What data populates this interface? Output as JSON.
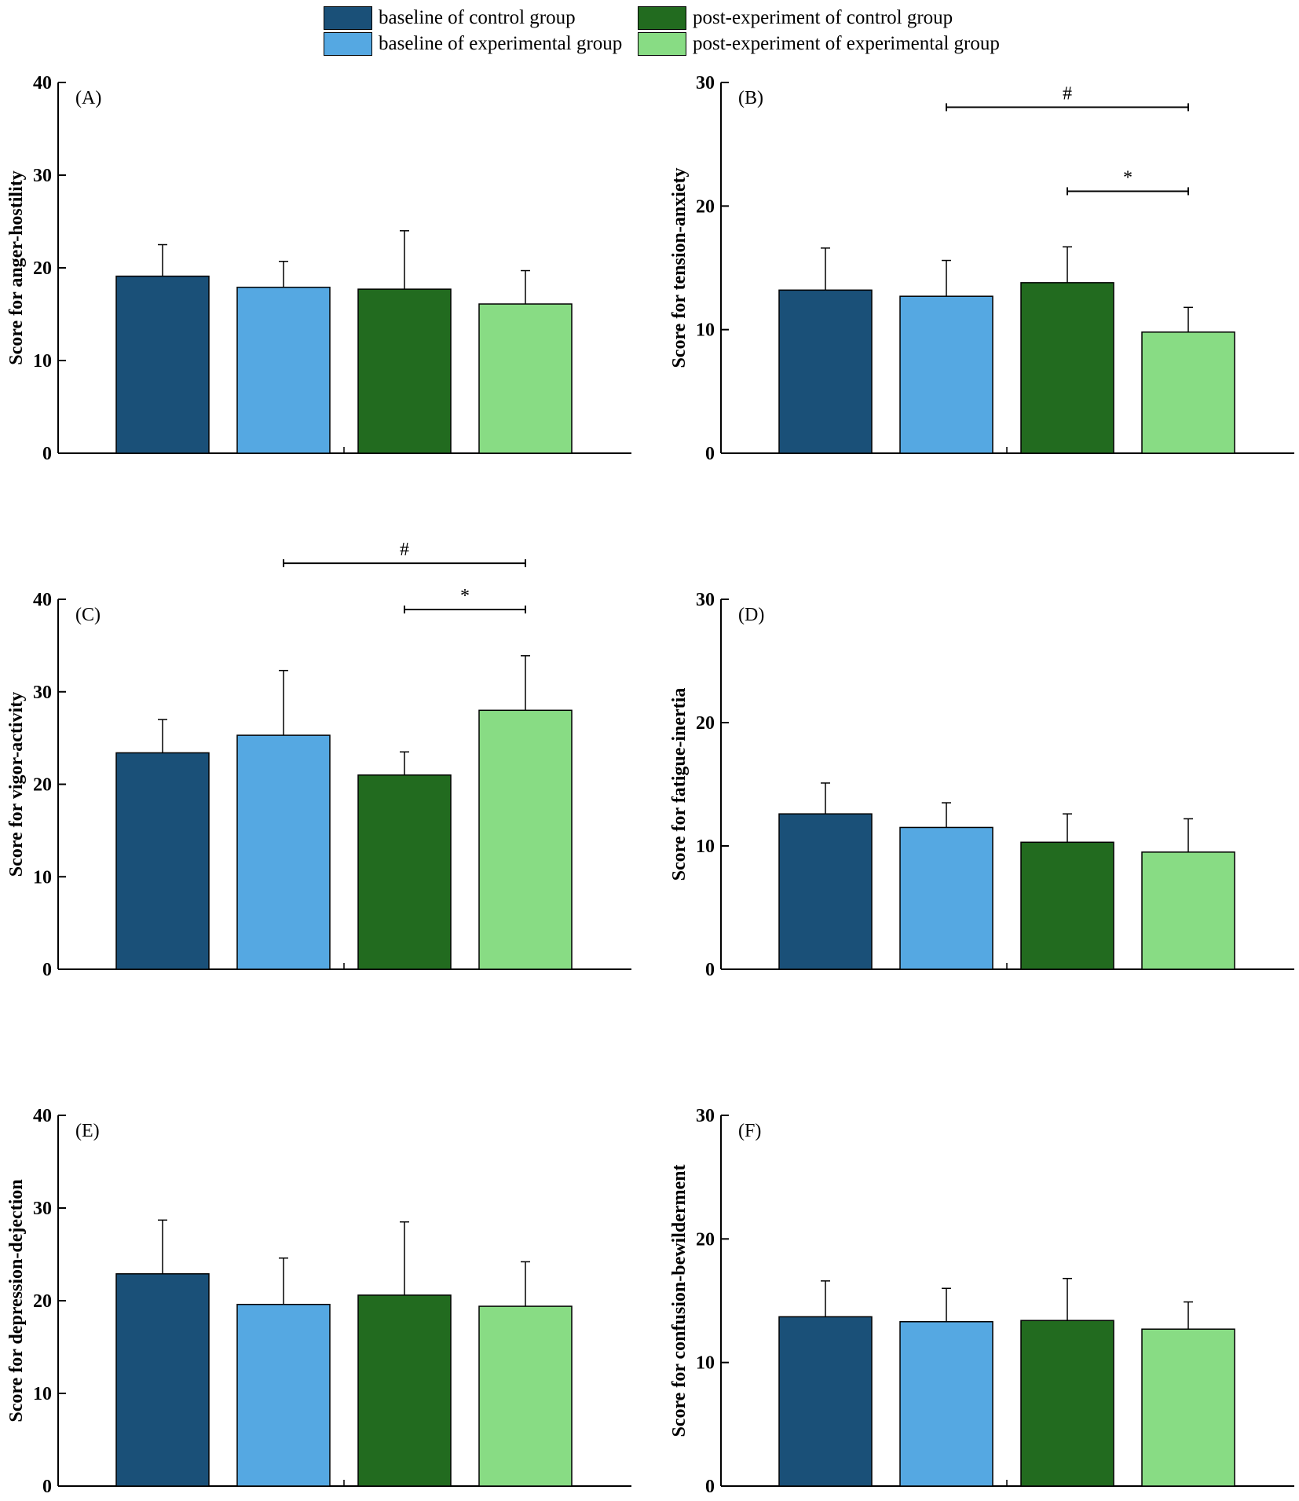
{
  "legend": {
    "items": [
      {
        "label": "baseline of control group",
        "color": "#1a5078"
      },
      {
        "label": "baseline of experimental group",
        "color": "#55a8e2"
      },
      {
        "label": "post-experiment of control group",
        "color": "#226b1f"
      },
      {
        "label": "post-experiment of experimental group",
        "color": "#88dc84"
      }
    ]
  },
  "chart_data": [
    {
      "type": "bar",
      "panel": "(A)",
      "ylabel": "Score for anger-hostility",
      "ylim": [
        0,
        40
      ],
      "yticks": [
        0,
        10,
        20,
        30,
        40
      ],
      "categories": [
        "baseline of control group",
        "baseline of experimental group",
        "post-experiment of control group",
        "post-experiment of experimental group"
      ],
      "values": [
        19.1,
        17.9,
        17.7,
        16.1
      ],
      "errors": [
        3.4,
        2.8,
        6.3,
        3.6
      ],
      "annotations": []
    },
    {
      "type": "bar",
      "panel": "(B)",
      "ylabel": "Score for tension-anxiety",
      "ylim": [
        0,
        30
      ],
      "yticks": [
        0,
        10,
        20,
        30
      ],
      "categories": [
        "baseline of control group",
        "baseline of experimental group",
        "post-experiment of control group",
        "post-experiment of experimental group"
      ],
      "values": [
        13.2,
        12.7,
        13.8,
        9.8
      ],
      "errors": [
        3.4,
        2.9,
        2.9,
        2.0
      ],
      "annotations": [
        {
          "label": "#",
          "from": 1,
          "to": 3,
          "y": 28.0
        },
        {
          "label": "*",
          "from": 2,
          "to": 3,
          "y": 21.2
        }
      ]
    },
    {
      "type": "bar",
      "panel": "(C)",
      "ylabel": "Score for vigor-activity",
      "ylim": [
        0,
        40
      ],
      "yticks": [
        0,
        10,
        20,
        30,
        40
      ],
      "categories": [
        "baseline of control group",
        "baseline of experimental group",
        "post-experiment of control group",
        "post-experiment of experimental group"
      ],
      "values": [
        23.4,
        25.3,
        21.0,
        28.0
      ],
      "errors": [
        3.6,
        7.0,
        2.5,
        5.9
      ],
      "annotations": [
        {
          "label": "#",
          "from": 1,
          "to": 3,
          "y": 43.9
        },
        {
          "label": "*",
          "from": 2,
          "to": 3,
          "y": 38.9
        }
      ]
    },
    {
      "type": "bar",
      "panel": "(D)",
      "ylabel": "Score for fatigue-inertia",
      "ylim": [
        0,
        30
      ],
      "yticks": [
        0,
        10,
        20,
        30
      ],
      "categories": [
        "baseline of control group",
        "baseline of experimental group",
        "post-experiment of control group",
        "post-experiment of experimental group"
      ],
      "values": [
        12.6,
        11.5,
        10.3,
        9.5
      ],
      "errors": [
        2.5,
        2.0,
        2.3,
        2.7
      ],
      "annotations": []
    },
    {
      "type": "bar",
      "panel": "(E)",
      "ylabel": "Score for depression-dejection",
      "ylim": [
        0,
        40
      ],
      "yticks": [
        0,
        10,
        20,
        30,
        40
      ],
      "categories": [
        "baseline of control group",
        "baseline of experimental group",
        "post-experiment of control group",
        "post-experiment of experimental group"
      ],
      "values": [
        22.9,
        19.6,
        20.6,
        19.4
      ],
      "errors": [
        5.8,
        5.0,
        7.9,
        4.8
      ],
      "annotations": []
    },
    {
      "type": "bar",
      "panel": "(F)",
      "ylabel": "Score for confusion-bewilderment",
      "ylim": [
        0,
        30
      ],
      "yticks": [
        0,
        10,
        20,
        30
      ],
      "categories": [
        "baseline of control group",
        "baseline of experimental group",
        "post-experiment of control group",
        "post-experiment of experimental group"
      ],
      "values": [
        13.7,
        13.3,
        13.4,
        12.7
      ],
      "errors": [
        2.9,
        2.7,
        3.4,
        2.2
      ],
      "annotations": []
    }
  ]
}
